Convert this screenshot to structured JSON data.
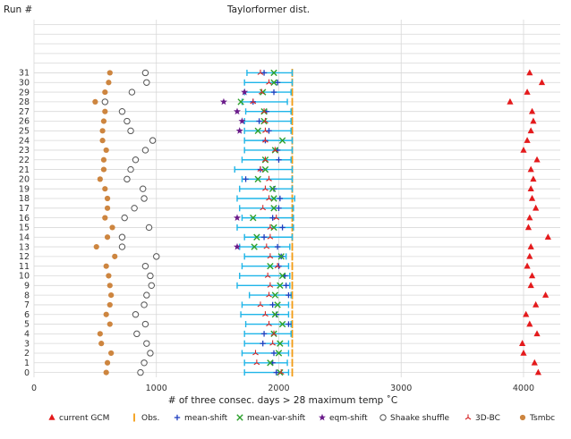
{
  "chart_data": {
    "type": "scatter",
    "title": "Taylorformer dist.",
    "ylabel": "Run #",
    "xlabel": "# of three consec. days > 28 maximum temp ˚C",
    "xlim": [
      0,
      4300
    ],
    "xticks": [
      0,
      1000,
      2000,
      3000,
      4000
    ],
    "ylim": [
      -0.5,
      36.5
    ],
    "yticks": [
      0,
      1,
      2,
      3,
      4,
      5,
      6,
      7,
      8,
      9,
      10,
      11,
      12,
      13,
      14,
      15,
      16,
      17,
      18,
      19,
      20,
      21,
      22,
      23,
      24,
      25,
      26,
      27,
      28,
      29,
      30,
      31
    ],
    "grid": true,
    "legend_position": "bottom",
    "obs_value": 2110,
    "colors": {
      "current_gcm": "#e41a1c",
      "obs": "#f39c12",
      "mean_shift": "#1f3fbf",
      "mean_var_shift": "#2ca02c",
      "eqm_shift": "#6a1b8a",
      "shaake": "#555555",
      "bc3d": "#d62728",
      "tsmbc": "#cd853f",
      "taylor": "#1fb5e8"
    },
    "series": [
      {
        "key": "current_gcm",
        "name": "current GCM",
        "marker": "triangle",
        "values": [
          4120,
          4090,
          4000,
          3990,
          4110,
          4050,
          4020,
          4100,
          4180,
          4060,
          4070,
          4030,
          4050,
          4060,
          4200,
          4040,
          4050,
          4100,
          4070,
          4060,
          4080,
          4060,
          4110,
          4000,
          4030,
          4060,
          4080,
          4070,
          3890,
          4030,
          4150,
          4050
        ]
      },
      {
        "key": "obs",
        "name": "Obs.",
        "marker": "vline",
        "values": []
      },
      {
        "key": "mean_shift",
        "name": "mean-shift",
        "marker": "plus",
        "values": [
          1980,
          1950,
          1960,
          1870,
          1880,
          2080,
          1980,
          1950,
          2080,
          2060,
          2050,
          2000,
          2020,
          1990,
          1880,
          2030,
          1950,
          2000,
          2010,
          1960,
          1730,
          1850,
          2000,
          1990,
          1890,
          1920,
          1840,
          1900,
          1790,
          1960,
          1990,
          1880
        ]
      },
      {
        "key": "mean_var_shift",
        "name": "mean-var-shift",
        "marker": "x",
        "values": [
          2010,
          1930,
          2000,
          2010,
          1960,
          2030,
          1970,
          1990,
          1970,
          2010,
          2030,
          1930,
          2020,
          1800,
          1820,
          1960,
          1790,
          1960,
          1960,
          1950,
          1830,
          1890,
          1890,
          1970,
          2030,
          1830,
          1880,
          1880,
          1690,
          1870,
          1960,
          1960
        ]
      },
      {
        "key": "eqm_shift",
        "name": "eqm-shift",
        "marker": "star",
        "values": [
          null,
          null,
          null,
          null,
          null,
          null,
          null,
          null,
          null,
          null,
          null,
          null,
          null,
          1660,
          null,
          null,
          1660,
          null,
          null,
          null,
          null,
          null,
          null,
          null,
          null,
          1680,
          1700,
          1660,
          1550,
          1720,
          null,
          null
        ]
      },
      {
        "key": "shaake",
        "name": "Shaake shuffle",
        "marker": "circle",
        "values": [
          870,
          900,
          950,
          920,
          840,
          910,
          830,
          900,
          920,
          960,
          950,
          910,
          1000,
          720,
          720,
          940,
          740,
          820,
          900,
          890,
          760,
          790,
          830,
          910,
          970,
          790,
          760,
          720,
          580,
          800,
          920,
          910
        ]
      },
      {
        "key": "bc3d",
        "name": "3D-BC",
        "marker": "tri",
        "values": [
          2020,
          1820,
          1810,
          1950,
          1960,
          1920,
          1890,
          1850,
          1920,
          1930,
          1910,
          1990,
          1930,
          1900,
          1930,
          1930,
          1980,
          1870,
          1920,
          1890,
          1920,
          1850,
          1890,
          1970,
          1890,
          1890,
          1890,
          1880,
          1790,
          1860,
          1920,
          1850
        ]
      },
      {
        "key": "tsmbc",
        "name": "Tsmbc",
        "marker": "dot",
        "values": [
          590,
          600,
          630,
          550,
          540,
          620,
          590,
          620,
          630,
          620,
          610,
          590,
          660,
          510,
          600,
          640,
          580,
          600,
          600,
          580,
          540,
          570,
          570,
          590,
          560,
          560,
          570,
          580,
          500,
          580,
          610,
          620
        ]
      }
    ],
    "taylorformer_range": {
      "name": "Taylorformer",
      "low": [
        1720,
        1720,
        1700,
        1720,
        1720,
        1730,
        1690,
        1700,
        1760,
        1660,
        1680,
        1700,
        1720,
        1680,
        1720,
        1660,
        1700,
        1680,
        1660,
        1680,
        1700,
        1640,
        1700,
        1720,
        1720,
        1720,
        1720,
        1730,
        1700,
        1720,
        1720,
        1740
      ],
      "high": [
        2080,
        2070,
        2080,
        2080,
        2100,
        2100,
        2080,
        2080,
        2100,
        2090,
        2090,
        2080,
        2060,
        2090,
        2110,
        2120,
        2120,
        2120,
        2130,
        2110,
        2110,
        2110,
        2100,
        2110,
        2110,
        2100,
        2100,
        2100,
        2070,
        2100,
        2110,
        2110
      ]
    }
  }
}
